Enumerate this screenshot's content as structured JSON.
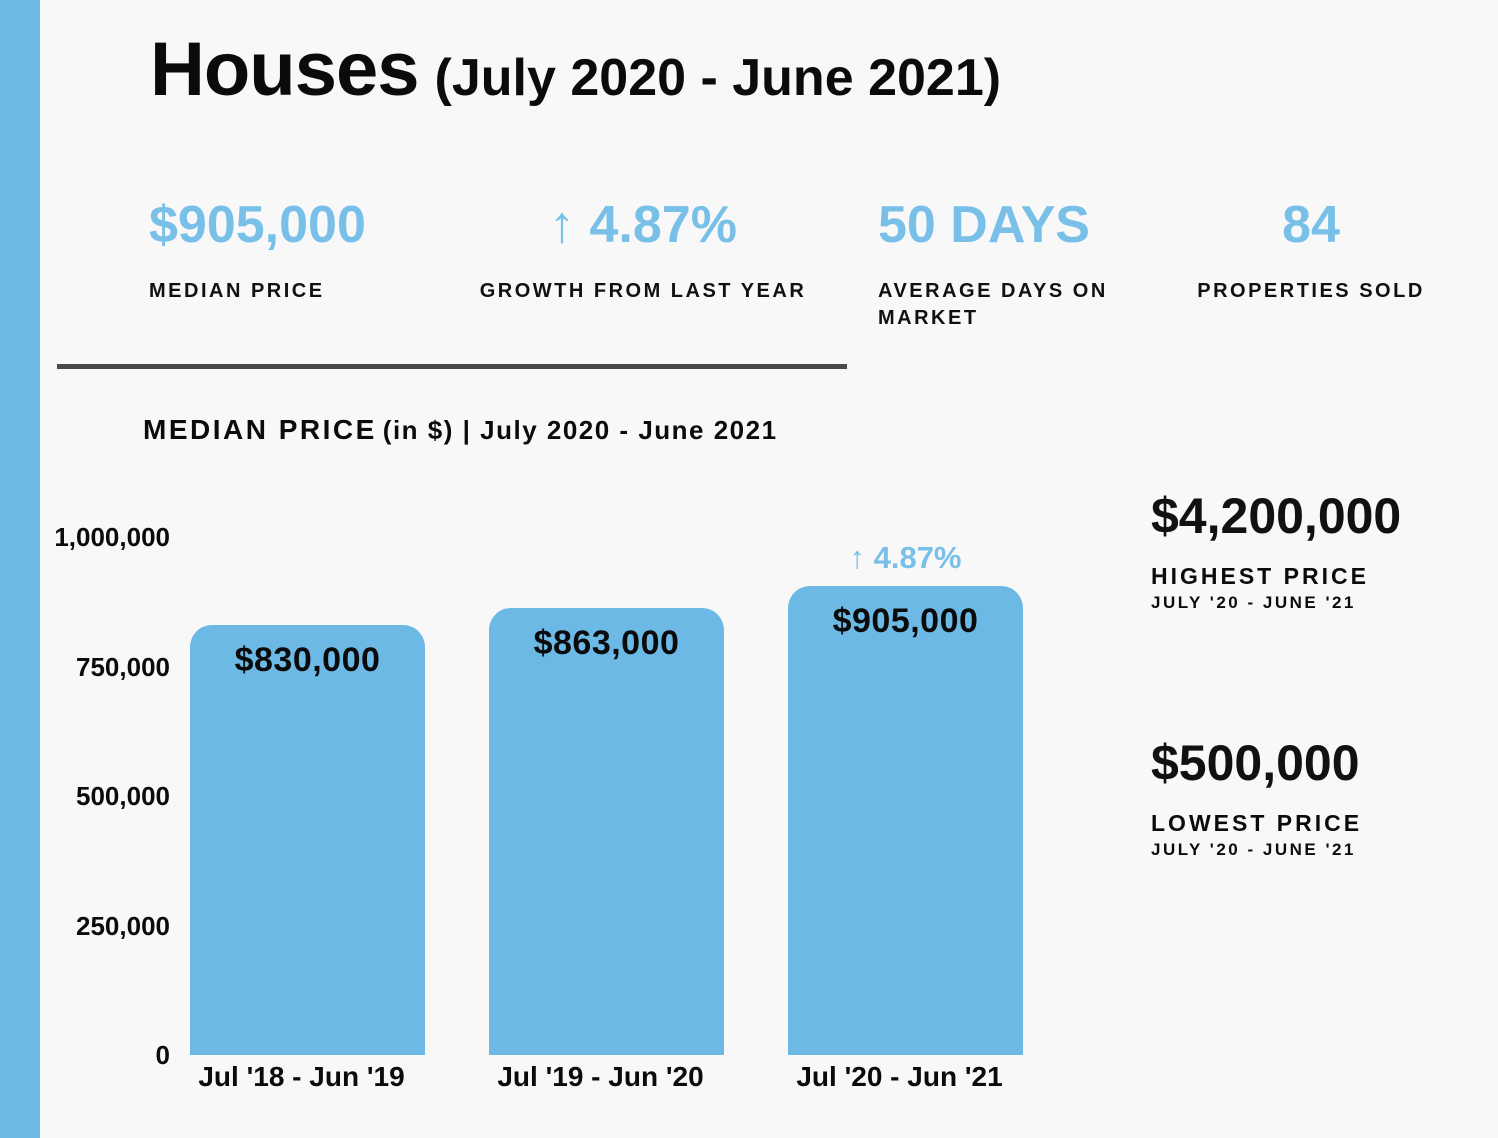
{
  "colors": {
    "accent": "#6cb9e6",
    "accent_light": "#79c0e8",
    "background": "#f8f8f8",
    "text": "#0b0b0b",
    "divider": "#4a4a4a"
  },
  "header": {
    "title": "Houses",
    "period": "(July 2020 - June 2021)"
  },
  "stats": [
    {
      "value": "$905,000",
      "label": "MEDIAN PRICE"
    },
    {
      "value": "↑ 4.87%",
      "label": "GROWTH FROM LAST YEAR"
    },
    {
      "value": "50 DAYS",
      "label": "AVERAGE DAYS ON MARKET"
    },
    {
      "value": "84",
      "label": "PROPERTIES SOLD"
    }
  ],
  "chart_header": {
    "title": "MEDIAN PRICE",
    "subtitle": "(in $) | July 2020 - June 2021"
  },
  "chart_data": {
    "type": "bar",
    "title": "MEDIAN PRICE (in $) | July 2020 - June 2021",
    "categories": [
      "Jul '18 - Jun '19",
      "Jul '19 - Jun '20",
      "Jul '20 - Jun '21"
    ],
    "values": [
      830000,
      863000,
      905000
    ],
    "bar_labels": [
      "$830,000",
      "$863,000",
      "$905,000"
    ],
    "annotation": {
      "text": "↑ 4.87%",
      "bar_index": 2
    },
    "xlabel": "",
    "ylabel": "",
    "ylim": [
      0,
      1000000
    ],
    "yticks": [
      0,
      250000,
      500000,
      750000,
      1000000
    ],
    "ytick_labels": [
      "0",
      "250,000",
      "500,000",
      "750,000",
      "1,000,000"
    ],
    "grid": false,
    "legend": false,
    "bar_color": "#6cb9e6"
  },
  "highlights": [
    {
      "value": "$4,200,000",
      "label": "HIGHEST PRICE",
      "period": "JULY '20 - JUNE '21"
    },
    {
      "value": "$500,000",
      "label": "LOWEST PRICE",
      "period": "JULY '20 - JUNE '21"
    }
  ]
}
